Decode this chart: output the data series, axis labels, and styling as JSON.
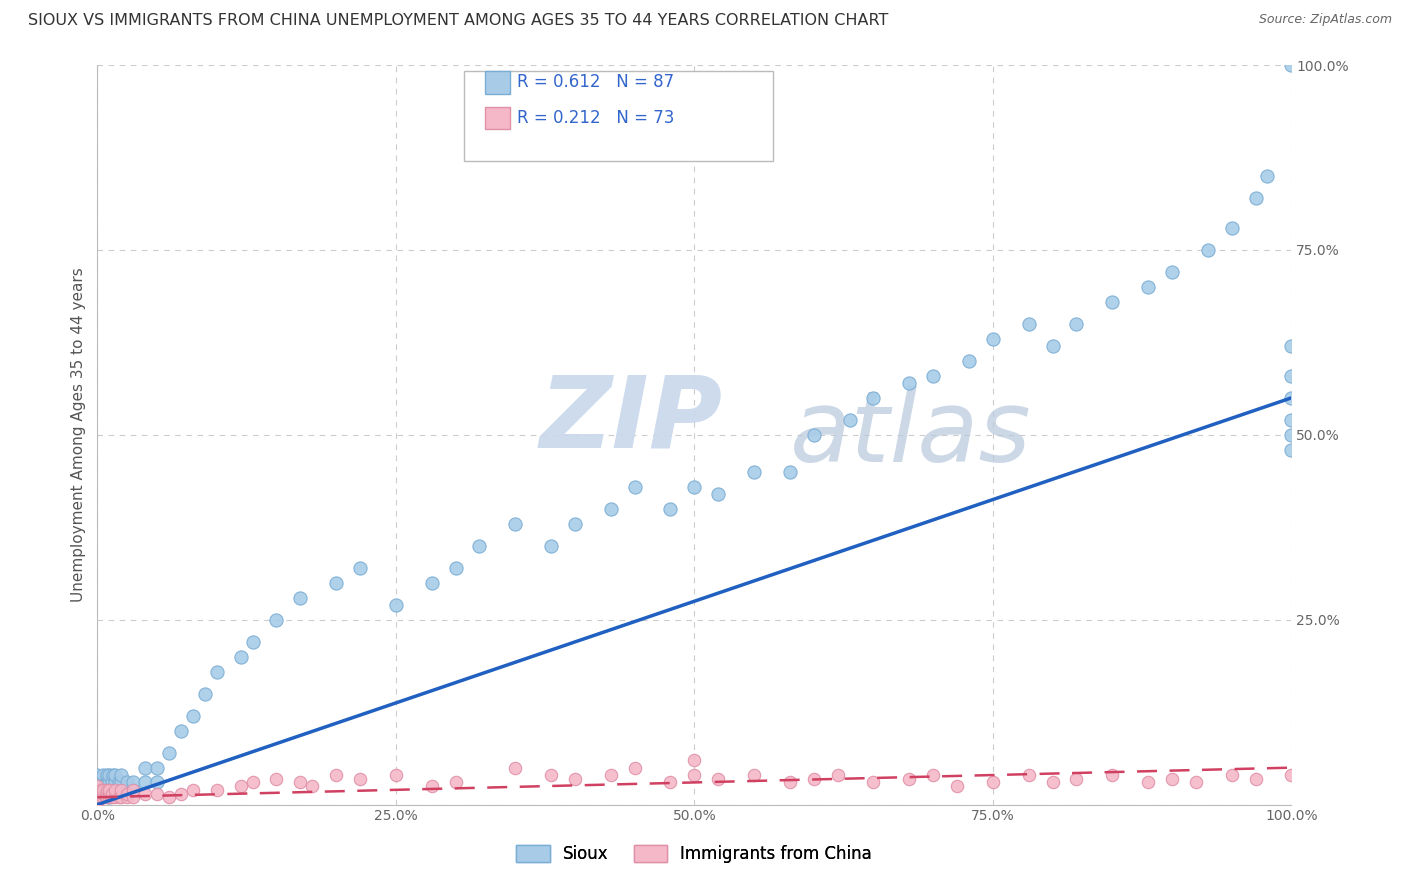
{
  "title": "SIOUX VS IMMIGRANTS FROM CHINA UNEMPLOYMENT AMONG AGES 35 TO 44 YEARS CORRELATION CHART",
  "source": "Source: ZipAtlas.com",
  "ylabel": "Unemployment Among Ages 35 to 44 years",
  "sioux_label": "Sioux",
  "china_label": "Immigrants from China",
  "sioux_R": 0.612,
  "sioux_N": 87,
  "china_R": 0.212,
  "china_N": 73,
  "xlim": [
    0.0,
    1.0
  ],
  "ylim": [
    0.0,
    1.0
  ],
  "xticks": [
    0.0,
    0.25,
    0.5,
    0.75,
    1.0
  ],
  "yticks": [
    0.0,
    0.25,
    0.5,
    0.75,
    1.0
  ],
  "xticklabels": [
    "0.0%",
    "25.0%",
    "50.0%",
    "75.0%",
    "100.0%"
  ],
  "yticklabels": [
    "",
    "25.0%",
    "50.0%",
    "75.0%",
    "100.0%"
  ],
  "sioux_color": "#a8cce8",
  "sioux_edge": "#7aadd4",
  "china_color": "#f4b8c8",
  "china_edge": "#e090a8",
  "trend_sioux_color": "#2060c0",
  "trend_china_color": "#d04060",
  "background_color": "#ffffff",
  "grid_color": "#cccccc",
  "title_fontsize": 11.5,
  "axis_label_fontsize": 11,
  "tick_fontsize": 10,
  "legend_fontsize": 12,
  "watermark_zip_color": "#c8d8ec",
  "watermark_atlas_color": "#b8c8dc",
  "sioux_x": [
    0.0,
    0.0,
    0.0,
    0.0,
    0.003,
    0.003,
    0.005,
    0.005,
    0.005,
    0.007,
    0.007,
    0.008,
    0.008,
    0.008,
    0.01,
    0.01,
    0.01,
    0.01,
    0.012,
    0.012,
    0.013,
    0.013,
    0.015,
    0.015,
    0.015,
    0.018,
    0.018,
    0.02,
    0.02,
    0.02,
    0.025,
    0.025,
    0.03,
    0.03,
    0.04,
    0.04,
    0.05,
    0.05,
    0.06,
    0.07,
    0.08,
    0.09,
    0.1,
    0.12,
    0.13,
    0.15,
    0.17,
    0.2,
    0.22,
    0.25,
    0.28,
    0.3,
    0.32,
    0.35,
    0.38,
    0.4,
    0.43,
    0.45,
    0.48,
    0.5,
    0.52,
    0.55,
    0.58,
    0.6,
    0.63,
    0.65,
    0.68,
    0.7,
    0.73,
    0.75,
    0.78,
    0.8,
    0.82,
    0.85,
    0.88,
    0.9,
    0.93,
    0.95,
    0.97,
    0.98,
    1.0,
    1.0,
    1.0,
    1.0,
    1.0,
    1.0,
    1.0
  ],
  "sioux_y": [
    0.01,
    0.02,
    0.03,
    0.04,
    0.02,
    0.03,
    0.02,
    0.03,
    0.04,
    0.02,
    0.03,
    0.02,
    0.03,
    0.04,
    0.01,
    0.02,
    0.03,
    0.04,
    0.02,
    0.03,
    0.02,
    0.04,
    0.02,
    0.03,
    0.04,
    0.02,
    0.03,
    0.02,
    0.03,
    0.04,
    0.02,
    0.03,
    0.02,
    0.03,
    0.03,
    0.05,
    0.03,
    0.05,
    0.07,
    0.1,
    0.12,
    0.15,
    0.18,
    0.2,
    0.22,
    0.25,
    0.28,
    0.3,
    0.32,
    0.27,
    0.3,
    0.32,
    0.35,
    0.38,
    0.35,
    0.38,
    0.4,
    0.43,
    0.4,
    0.43,
    0.42,
    0.45,
    0.45,
    0.5,
    0.52,
    0.55,
    0.57,
    0.58,
    0.6,
    0.63,
    0.65,
    0.62,
    0.65,
    0.68,
    0.7,
    0.72,
    0.75,
    0.78,
    0.82,
    0.85,
    0.48,
    0.5,
    0.52,
    0.55,
    0.58,
    0.62,
    1.0
  ],
  "china_x": [
    0.0,
    0.0,
    0.0,
    0.0,
    0.0,
    0.0,
    0.003,
    0.003,
    0.005,
    0.005,
    0.005,
    0.007,
    0.007,
    0.008,
    0.008,
    0.01,
    0.01,
    0.01,
    0.012,
    0.012,
    0.015,
    0.015,
    0.018,
    0.02,
    0.02,
    0.025,
    0.025,
    0.03,
    0.03,
    0.04,
    0.05,
    0.06,
    0.07,
    0.08,
    0.1,
    0.12,
    0.13,
    0.15,
    0.17,
    0.18,
    0.2,
    0.22,
    0.25,
    0.28,
    0.3,
    0.35,
    0.38,
    0.4,
    0.43,
    0.45,
    0.48,
    0.5,
    0.52,
    0.5,
    0.55,
    0.58,
    0.6,
    0.62,
    0.65,
    0.68,
    0.7,
    0.72,
    0.75,
    0.78,
    0.8,
    0.82,
    0.85,
    0.88,
    0.9,
    0.92,
    0.95,
    0.97,
    1.0
  ],
  "china_y": [
    0.0,
    0.005,
    0.01,
    0.015,
    0.02,
    0.025,
    0.01,
    0.02,
    0.01,
    0.015,
    0.02,
    0.01,
    0.015,
    0.01,
    0.02,
    0.01,
    0.015,
    0.02,
    0.01,
    0.015,
    0.01,
    0.02,
    0.01,
    0.01,
    0.02,
    0.01,
    0.015,
    0.01,
    0.02,
    0.015,
    0.015,
    0.01,
    0.015,
    0.02,
    0.02,
    0.025,
    0.03,
    0.035,
    0.03,
    0.025,
    0.04,
    0.035,
    0.04,
    0.025,
    0.03,
    0.05,
    0.04,
    0.035,
    0.04,
    0.05,
    0.03,
    0.04,
    0.035,
    0.06,
    0.04,
    0.03,
    0.035,
    0.04,
    0.03,
    0.035,
    0.04,
    0.025,
    0.03,
    0.04,
    0.03,
    0.035,
    0.04,
    0.03,
    0.035,
    0.03,
    0.04,
    0.035,
    0.04
  ]
}
